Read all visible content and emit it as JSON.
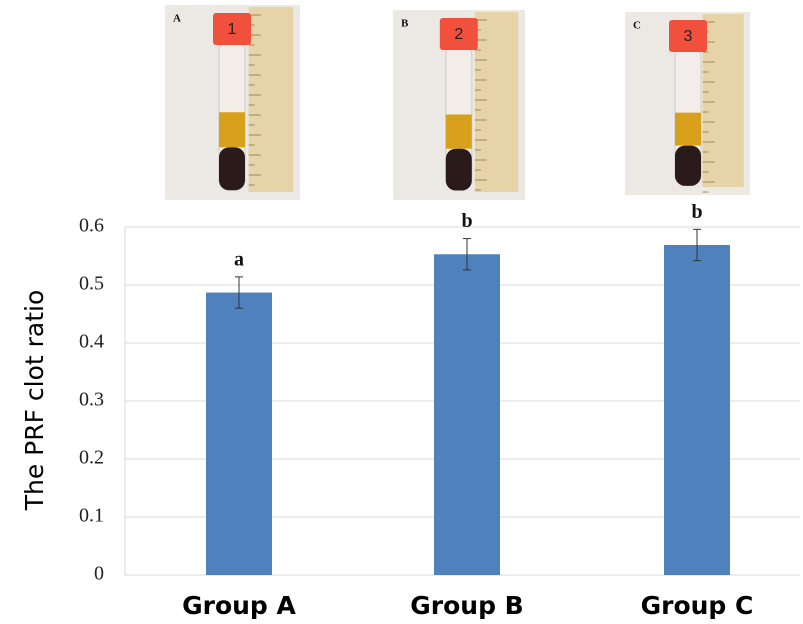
{
  "chart_data": {
    "type": "bar",
    "ylabel": "The PRF clot ratio",
    "categories": [
      "Group A",
      "Group B",
      "Group C"
    ],
    "values": [
      0.487,
      0.553,
      0.569
    ],
    "errors": [
      0.027,
      0.027,
      0.027
    ],
    "significance_labels": [
      "a",
      "b",
      "b"
    ],
    "color": "#4f81bd",
    "ylim": [
      0,
      0.6
    ],
    "yticks": [
      0,
      0.1,
      0.2,
      0.3,
      0.4,
      0.5,
      0.6
    ],
    "grid": true
  },
  "photos": [
    {
      "label": "A",
      "cap": "1"
    },
    {
      "label": "B",
      "cap": "2"
    },
    {
      "label": "C",
      "cap": "3"
    }
  ]
}
